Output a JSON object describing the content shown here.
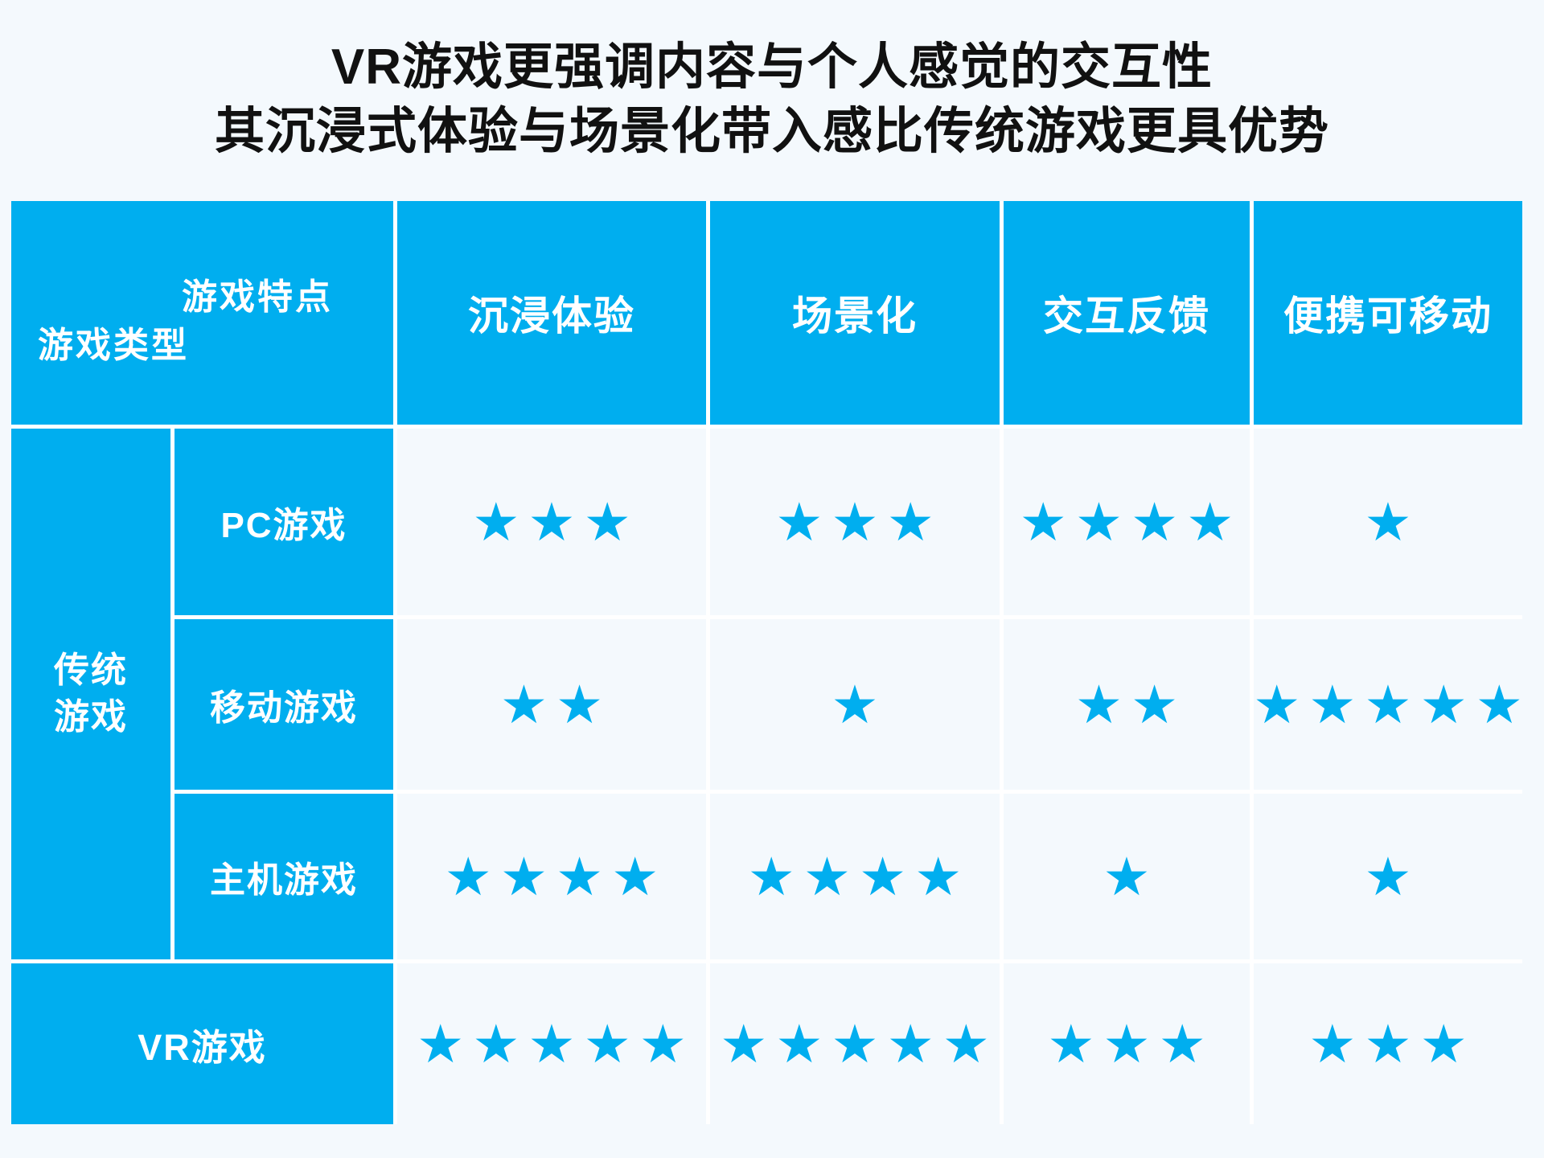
{
  "title": {
    "line1": "VR游戏更强调内容与个人感觉的交互性",
    "line2": "其沉浸式体验与场景化带入感比传统游戏更具优势"
  },
  "table": {
    "traditional_group_lines": [
      "传统",
      "游戏"
    ]
  },
  "chart_data": {
    "type": "table",
    "title": "VR游戏更强调内容与个人感觉的交互性，其沉浸式体验与场景化带入感比传统游戏更具优势",
    "column_axis_label": "游戏特点",
    "row_axis_label": "游戏类型",
    "columns": [
      "沉浸体验",
      "场景化",
      "交互反馈",
      "便携可移动"
    ],
    "rows": [
      {
        "group": "传统游戏",
        "label": "PC游戏",
        "stars": [
          3,
          3,
          4,
          1
        ]
      },
      {
        "group": "传统游戏",
        "label": "移动游戏",
        "stars": [
          2,
          1,
          2,
          5
        ]
      },
      {
        "group": "传统游戏",
        "label": "主机游戏",
        "stars": [
          4,
          4,
          1,
          1
        ]
      },
      {
        "group": "VR游戏",
        "label": "VR游戏",
        "stars": [
          5,
          5,
          3,
          3
        ]
      }
    ],
    "rating_min": 1,
    "rating_max": 5,
    "rating_symbol": "★"
  },
  "colors": {
    "cell_blue": "#00AEEF",
    "star_blue": "#00AEEF",
    "grid_line": "#FFFFFF",
    "page_background": "#F4F9FD",
    "title_text": "#111111",
    "cell_text": "#FFFFFF"
  }
}
